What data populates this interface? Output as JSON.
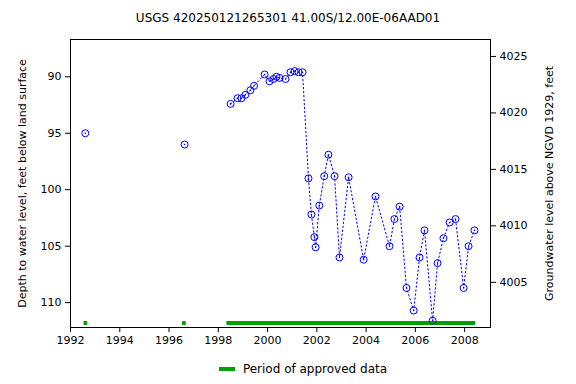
{
  "chart_data": {
    "type": "scatter",
    "title": "USGS 420250121265301 41.00S/12.00E-06AAD01",
    "y_label": "Depth to water level, feet below land surface",
    "y2_label": "Groundwater level above NGVD 1929, feet",
    "x": [
      1992.6,
      1994.6,
      1996.63,
      1997.5,
      1998.5,
      1998.78,
      1998.94,
      1999.1,
      1999.3,
      1999.45,
      1999.88,
      2000.08,
      2000.24,
      2000.36,
      2000.48,
      2000.73,
      2000.93,
      2001.1,
      2001.26,
      2001.42,
      2001.66,
      2001.78,
      2001.9,
      2001.95,
      2002.1,
      2002.3,
      2002.47,
      2002.72,
      2002.92,
      2003.29,
      2003.9,
      2004.38,
      2004.95,
      2005.15,
      2005.36,
      2005.64,
      2005.93,
      2006.17,
      2006.37,
      2006.7,
      2006.9,
      2007.14,
      2007.39,
      2007.63,
      2007.96,
      2008.16,
      2008.4
    ],
    "values": [
      95.0,
      null,
      96.0,
      null,
      92.4,
      91.9,
      91.9,
      91.6,
      91.2,
      90.8,
      89.8,
      90.4,
      90.2,
      90.0,
      90.1,
      90.2,
      89.6,
      89.5,
      89.6,
      89.6,
      99.0,
      102.2,
      104.2,
      105.1,
      101.4,
      98.8,
      96.9,
      98.8,
      106.0,
      98.9,
      106.2,
      100.6,
      105.0,
      102.6,
      101.5,
      108.7,
      110.7,
      106.0,
      103.6,
      111.6,
      106.5,
      104.3,
      102.9,
      102.6,
      108.7,
      105.0,
      103.6
    ],
    "color": "#0000ff",
    "marker": "circle",
    "line_style": "dotted",
    "xlim": [
      1992,
      2009.05
    ],
    "xticks": [
      1992,
      1994,
      1996,
      1998,
      2000,
      2002,
      2004,
      2006,
      2008
    ],
    "ylim": [
      86.7,
      112.2
    ],
    "yticks": [
      90,
      95,
      100,
      105,
      110
    ],
    "y2lim": [
      4026.5,
      4001.0
    ],
    "y2ticks": [
      4005,
      4010,
      4015,
      4020,
      4025
    ],
    "approved_periods": {
      "label": "Period of approved data",
      "color": "#00a000",
      "ranges": [
        [
          1992.55,
          1992.7
        ],
        [
          1996.55,
          1996.7
        ],
        [
          1998.35,
          2008.45
        ]
      ]
    },
    "legend": "bottom",
    "grid": false
  }
}
